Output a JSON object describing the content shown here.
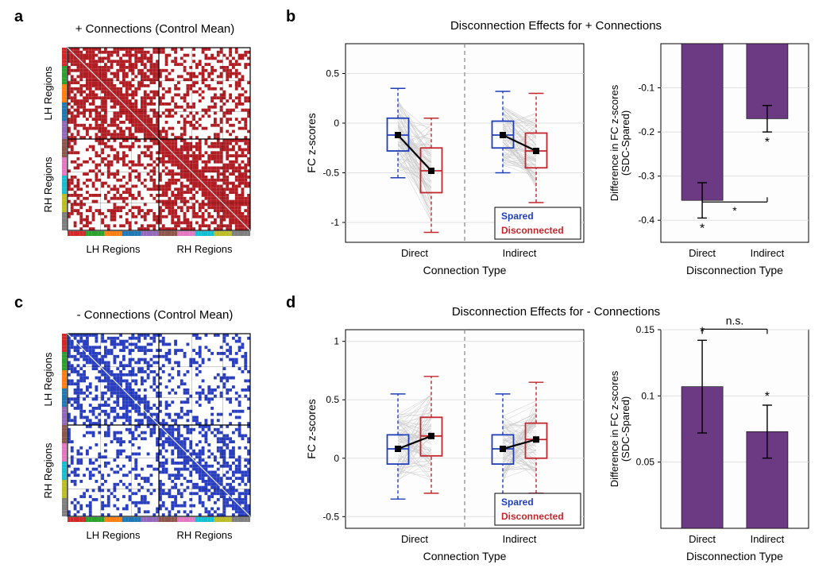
{
  "palette": {
    "red": "#c1272d",
    "blue": "#1f3fb8",
    "purple": "#6b3a82",
    "gray": "#c8c8c8",
    "darkgray": "#808080",
    "black": "#000000",
    "white": "#ffffff",
    "axis_tick": "#999999"
  },
  "panel_labels": {
    "a": "a",
    "b": "b",
    "c": "c",
    "d": "d"
  },
  "panel_a": {
    "title": "+ Connections (Control Mean)",
    "xlabel_left": "LH Regions",
    "xlabel_right": "RH Regions",
    "ylabel_top": "LH Regions",
    "ylabel_bot": "RH Regions",
    "matrix_size": 60,
    "cell_color": "#b01e24",
    "bg_color": "#ffffff",
    "density": 0.55
  },
  "panel_c": {
    "title": "- Connections (Control Mean)",
    "xlabel_left": "LH Regions",
    "xlabel_right": "RH Regions",
    "ylabel_top": "LH Regions",
    "ylabel_bot": "RH Regions",
    "matrix_size": 60,
    "cell_color": "#2a3fc0",
    "bg_color": "#ffffff",
    "density": 0.4
  },
  "panel_b": {
    "title": "Disconnection Effects for + Connections",
    "boxplot": {
      "ylabel": "FC z-scores",
      "xlabel": "Connection Type",
      "xcats": [
        "Direct",
        "Indirect"
      ],
      "ylim": [
        -1.2,
        0.8
      ],
      "yticks": [
        -1,
        -0.5,
        0,
        0.5
      ],
      "n_lines": 80,
      "line_color": "#c8c8c8",
      "grid_color": "#e0e0e0",
      "boxes": [
        {
          "x": 0,
          "group": "Spared",
          "median": -0.12,
          "q1": -0.28,
          "q3": 0.05,
          "wl": -0.55,
          "wh": 0.35,
          "color": "#1f3fb8"
        },
        {
          "x": 1,
          "group": "Disconnected",
          "median": -0.48,
          "q1": -0.7,
          "q3": -0.25,
          "wl": -1.1,
          "wh": 0.05,
          "color": "#c1272d"
        },
        {
          "x": 2,
          "group": "Spared",
          "median": -0.12,
          "q1": -0.25,
          "q3": 0.02,
          "wl": -0.5,
          "wh": 0.32,
          "color": "#1f3fb8"
        },
        {
          "x": 3,
          "group": "Disconnected",
          "median": -0.28,
          "q1": -0.45,
          "q3": -0.1,
          "wl": -0.8,
          "wh": 0.3,
          "color": "#c1272d"
        }
      ],
      "legend": [
        {
          "label": "Spared",
          "color": "#1f3fb8"
        },
        {
          "label": "Disconnected",
          "color": "#c1272d"
        }
      ]
    },
    "barplot": {
      "ylabel": "Difference in FC z-scores\n(SDC-Spared)",
      "xlabel": "Disconnection Type",
      "xcats": [
        "Direct",
        "Indirect"
      ],
      "ylim": [
        -0.45,
        0
      ],
      "yticks": [
        -0.4,
        -0.3,
        -0.2,
        -0.1
      ],
      "bars": [
        {
          "value": -0.355,
          "err": 0.04,
          "color": "#6b3a82",
          "sig": "*"
        },
        {
          "value": -0.17,
          "err": 0.03,
          "color": "#6b3a82",
          "sig": "*"
        }
      ],
      "between_sig": "*",
      "grid_color": "#e0e0e0"
    }
  },
  "panel_d": {
    "title": "Disconnection Effects for - Connections",
    "boxplot": {
      "ylabel": "FC z-scores",
      "xlabel": "Connection Type",
      "xcats": [
        "Direct",
        "Indirect"
      ],
      "ylim": [
        -0.6,
        1.1
      ],
      "yticks": [
        -0.5,
        0,
        0.5,
        1
      ],
      "n_lines": 80,
      "line_color": "#c8c8c8",
      "grid_color": "#e0e0e0",
      "boxes": [
        {
          "x": 0,
          "group": "Spared",
          "median": 0.08,
          "q1": -0.05,
          "q3": 0.2,
          "wl": -0.35,
          "wh": 0.55,
          "color": "#1f3fb8"
        },
        {
          "x": 1,
          "group": "Disconnected",
          "median": 0.19,
          "q1": 0.02,
          "q3": 0.35,
          "wl": -0.3,
          "wh": 0.7,
          "color": "#c1272d"
        },
        {
          "x": 2,
          "group": "Spared",
          "median": 0.08,
          "q1": -0.05,
          "q3": 0.2,
          "wl": -0.35,
          "wh": 0.55,
          "color": "#1f3fb8"
        },
        {
          "x": 3,
          "group": "Disconnected",
          "median": 0.16,
          "q1": 0.0,
          "q3": 0.3,
          "wl": -0.3,
          "wh": 0.65,
          "color": "#c1272d"
        }
      ],
      "legend": [
        {
          "label": "Spared",
          "color": "#1f3fb8"
        },
        {
          "label": "Disconnected",
          "color": "#c1272d"
        }
      ]
    },
    "barplot": {
      "ylabel": "Difference in FC z-scores\n(SDC-Spared)",
      "xlabel": "Disconnection Type",
      "xcats": [
        "Direct",
        "Indirect"
      ],
      "ylim": [
        0,
        0.15
      ],
      "yticks": [
        0.05,
        0.1,
        0.15
      ],
      "bars": [
        {
          "value": 0.107,
          "err": 0.035,
          "color": "#6b3a82",
          "sig": "*"
        },
        {
          "value": 0.073,
          "err": 0.02,
          "color": "#6b3a82",
          "sig": "*"
        }
      ],
      "between_sig": "n.s.",
      "grid_color": "#e0e0e0"
    }
  },
  "region_strip_colors": [
    "#d62728",
    "#2ca02c",
    "#ff7f0e",
    "#1f77b4",
    "#9467bd",
    "#8c564b",
    "#e377c2",
    "#17becf",
    "#bcbd22",
    "#7f7f7f"
  ]
}
